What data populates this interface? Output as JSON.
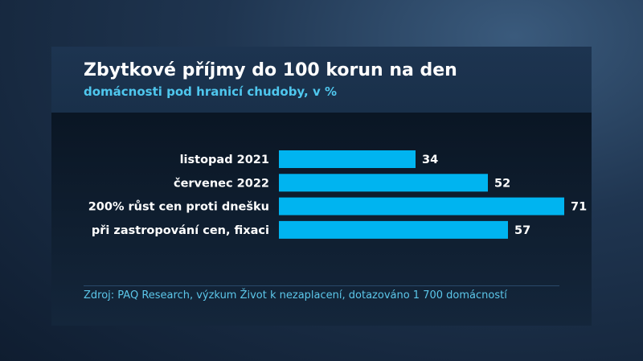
{
  "header": {
    "title": "Zbytkové příjmy do 100 korun na den",
    "subtitle": "domácnosti pod hranicí chudoby, v %"
  },
  "source": "Zdroj: PAQ Research, výzkum Život k nezaplacení, dotazováno 1 700 domácností",
  "colors": {
    "bar": "#00b4f0",
    "label": "#ffffff",
    "value": "#ffffff"
  },
  "chart_data": {
    "type": "bar",
    "orientation": "horizontal",
    "title": "Zbytkové příjmy do 100 korun na den",
    "subtitle": "domácnosti pod hranicí chudoby, v %",
    "categories": [
      "listopad 2021",
      "červenec 2022",
      "200% růst cen proti dnešku",
      "při zastropování cen, fixaci"
    ],
    "values": [
      34,
      52,
      71,
      57
    ],
    "xlim": [
      0,
      71
    ],
    "grid": false,
    "legend": "none"
  }
}
